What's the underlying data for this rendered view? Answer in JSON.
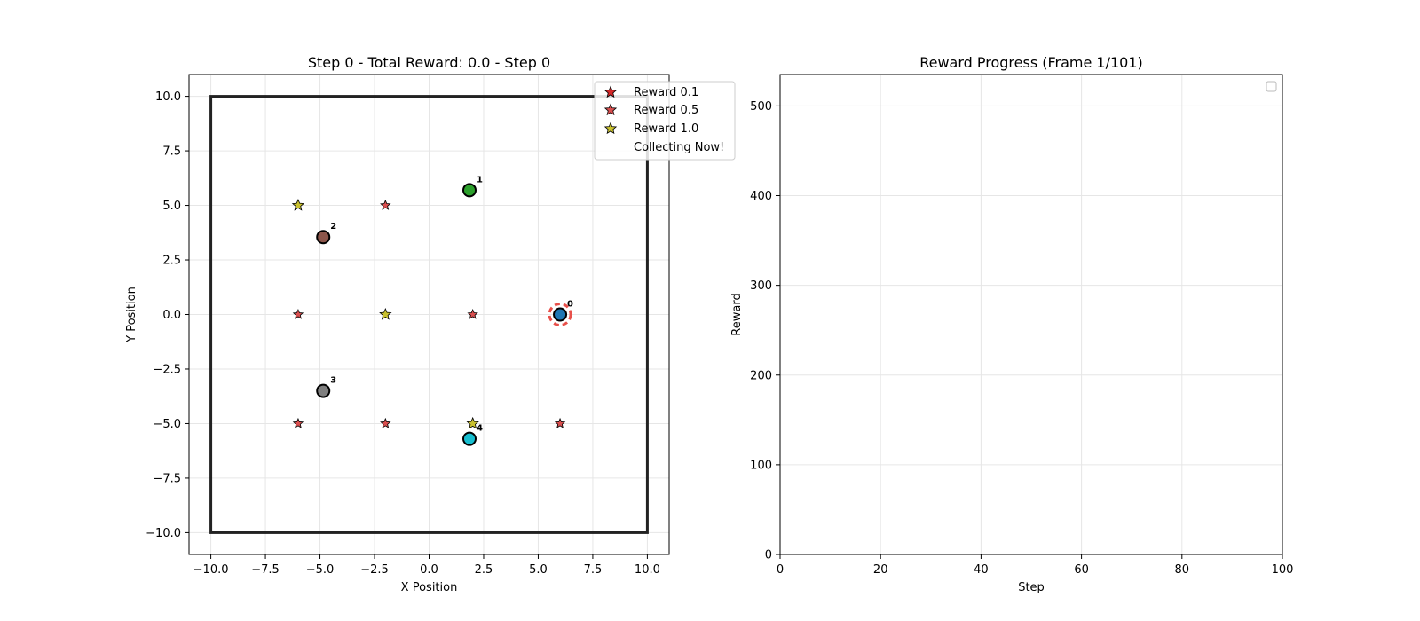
{
  "chart_data": [
    {
      "type": "scatter",
      "title": "Step 0 - Total Reward: 0.0 - Step 0",
      "xlabel": "X Position",
      "ylabel": "Y Position",
      "xlim": [
        -11,
        11
      ],
      "ylim": [
        -11,
        11
      ],
      "xticks": [
        -10.0,
        -7.5,
        -5.0,
        -2.5,
        0.0,
        2.5,
        5.0,
        7.5,
        10.0
      ],
      "yticks": [
        -10.0,
        -7.5,
        -5.0,
        -2.5,
        0.0,
        2.5,
        5.0,
        7.5,
        10.0
      ],
      "xtick_labels": [
        "−10.0",
        "−7.5",
        "−5.0",
        "−2.5",
        "0.0",
        "2.5",
        "5.0",
        "7.5",
        "10.0"
      ],
      "ytick_labels": [
        "−10.0",
        "−7.5",
        "−5.0",
        "−2.5",
        "0.0",
        "2.5",
        "5.0",
        "7.5",
        "10.0"
      ],
      "grid": true,
      "boundary": {
        "xmin": -10,
        "xmax": 10,
        "ymin": -10,
        "ymax": 10,
        "color": "#222222"
      },
      "rewards": [
        {
          "x": -6,
          "y": 5,
          "value": 1.0
        },
        {
          "x": -2,
          "y": 5,
          "value": 0.5
        },
        {
          "x": -6,
          "y": 0,
          "value": 0.5
        },
        {
          "x": -2,
          "y": 0,
          "value": 1.0
        },
        {
          "x": 2,
          "y": 0,
          "value": 0.5
        },
        {
          "x": -6,
          "y": -5,
          "value": 0.5
        },
        {
          "x": -2,
          "y": -5,
          "value": 0.5
        },
        {
          "x": 2,
          "y": -5,
          "value": 1.0
        },
        {
          "x": 6,
          "y": -5,
          "value": 0.5
        }
      ],
      "reward_colors": {
        "0.1": "#d62728",
        "0.5": "#d94f4f",
        "1.0": "#c9c12e"
      },
      "agents": [
        {
          "id": "0",
          "x": 6.0,
          "y": 0.0,
          "color": "#1f77b4",
          "collecting": true
        },
        {
          "id": "1",
          "x": 1.85,
          "y": 5.7,
          "color": "#2ca02c",
          "collecting": false
        },
        {
          "id": "2",
          "x": -4.85,
          "y": 3.55,
          "color": "#8c564b",
          "collecting": false
        },
        {
          "id": "3",
          "x": -4.85,
          "y": -3.5,
          "color": "#7f7f7f",
          "collecting": false
        },
        {
          "id": "4",
          "x": 1.85,
          "y": -5.7,
          "color": "#17becf",
          "collecting": false
        }
      ],
      "collecting_ring_color": "#e8504a",
      "legend": {
        "position": "upper-right",
        "entries": [
          {
            "label": "Reward 0.1",
            "marker": "star",
            "color": "#d62728"
          },
          {
            "label": "Reward 0.5",
            "marker": "star",
            "color": "#d94f4f"
          },
          {
            "label": "Reward 1.0",
            "marker": "star",
            "color": "#c9c12e"
          },
          {
            "label": "Collecting Now!",
            "marker": "none",
            "color": ""
          }
        ]
      }
    },
    {
      "type": "line",
      "title": "Reward Progress (Frame 1/101)",
      "xlabel": "Step",
      "ylabel": "Reward",
      "xlim": [
        0,
        100
      ],
      "ylim": [
        0,
        535
      ],
      "xticks": [
        0,
        20,
        40,
        60,
        80,
        100
      ],
      "yticks": [
        0,
        100,
        200,
        300,
        400,
        500
      ],
      "xtick_labels": [
        "0",
        "20",
        "40",
        "60",
        "80",
        "100"
      ],
      "ytick_labels": [
        "0",
        "100",
        "200",
        "300",
        "400",
        "500"
      ],
      "grid": true,
      "series": [],
      "legend": {
        "position": "upper-right",
        "entries": []
      }
    }
  ]
}
